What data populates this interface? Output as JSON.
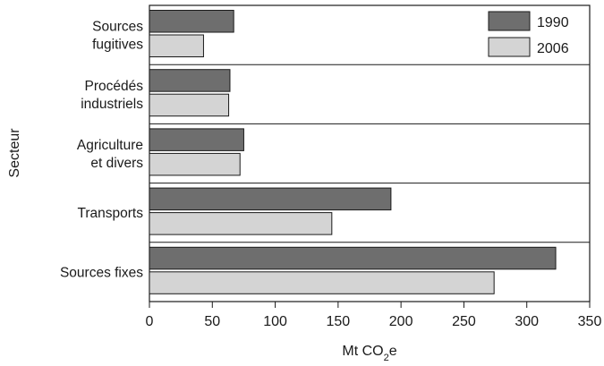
{
  "chart_data": {
    "type": "bar",
    "orientation": "horizontal",
    "categories": [
      [
        "Sources",
        "fugitives"
      ],
      [
        "Procédés",
        "industriels"
      ],
      [
        "Agriculture",
        "et divers"
      ],
      [
        "Transports"
      ],
      [
        "Sources fixes"
      ]
    ],
    "series": [
      {
        "name": "1990",
        "color": "#6e6e6e",
        "values": [
          67,
          64,
          75,
          192,
          323
        ]
      },
      {
        "name": "2006",
        "color": "#d4d4d4",
        "values": [
          43,
          63,
          72,
          145,
          274
        ]
      }
    ],
    "xlabel_main": "Mt CO",
    "xlabel_sub": "2",
    "xlabel_tail": "e",
    "ylabel": "Secteur",
    "xlim": [
      0,
      350
    ],
    "xticks": [
      0,
      50,
      100,
      150,
      200,
      250,
      300,
      350
    ],
    "legend_position": "top-right",
    "grid": false
  }
}
